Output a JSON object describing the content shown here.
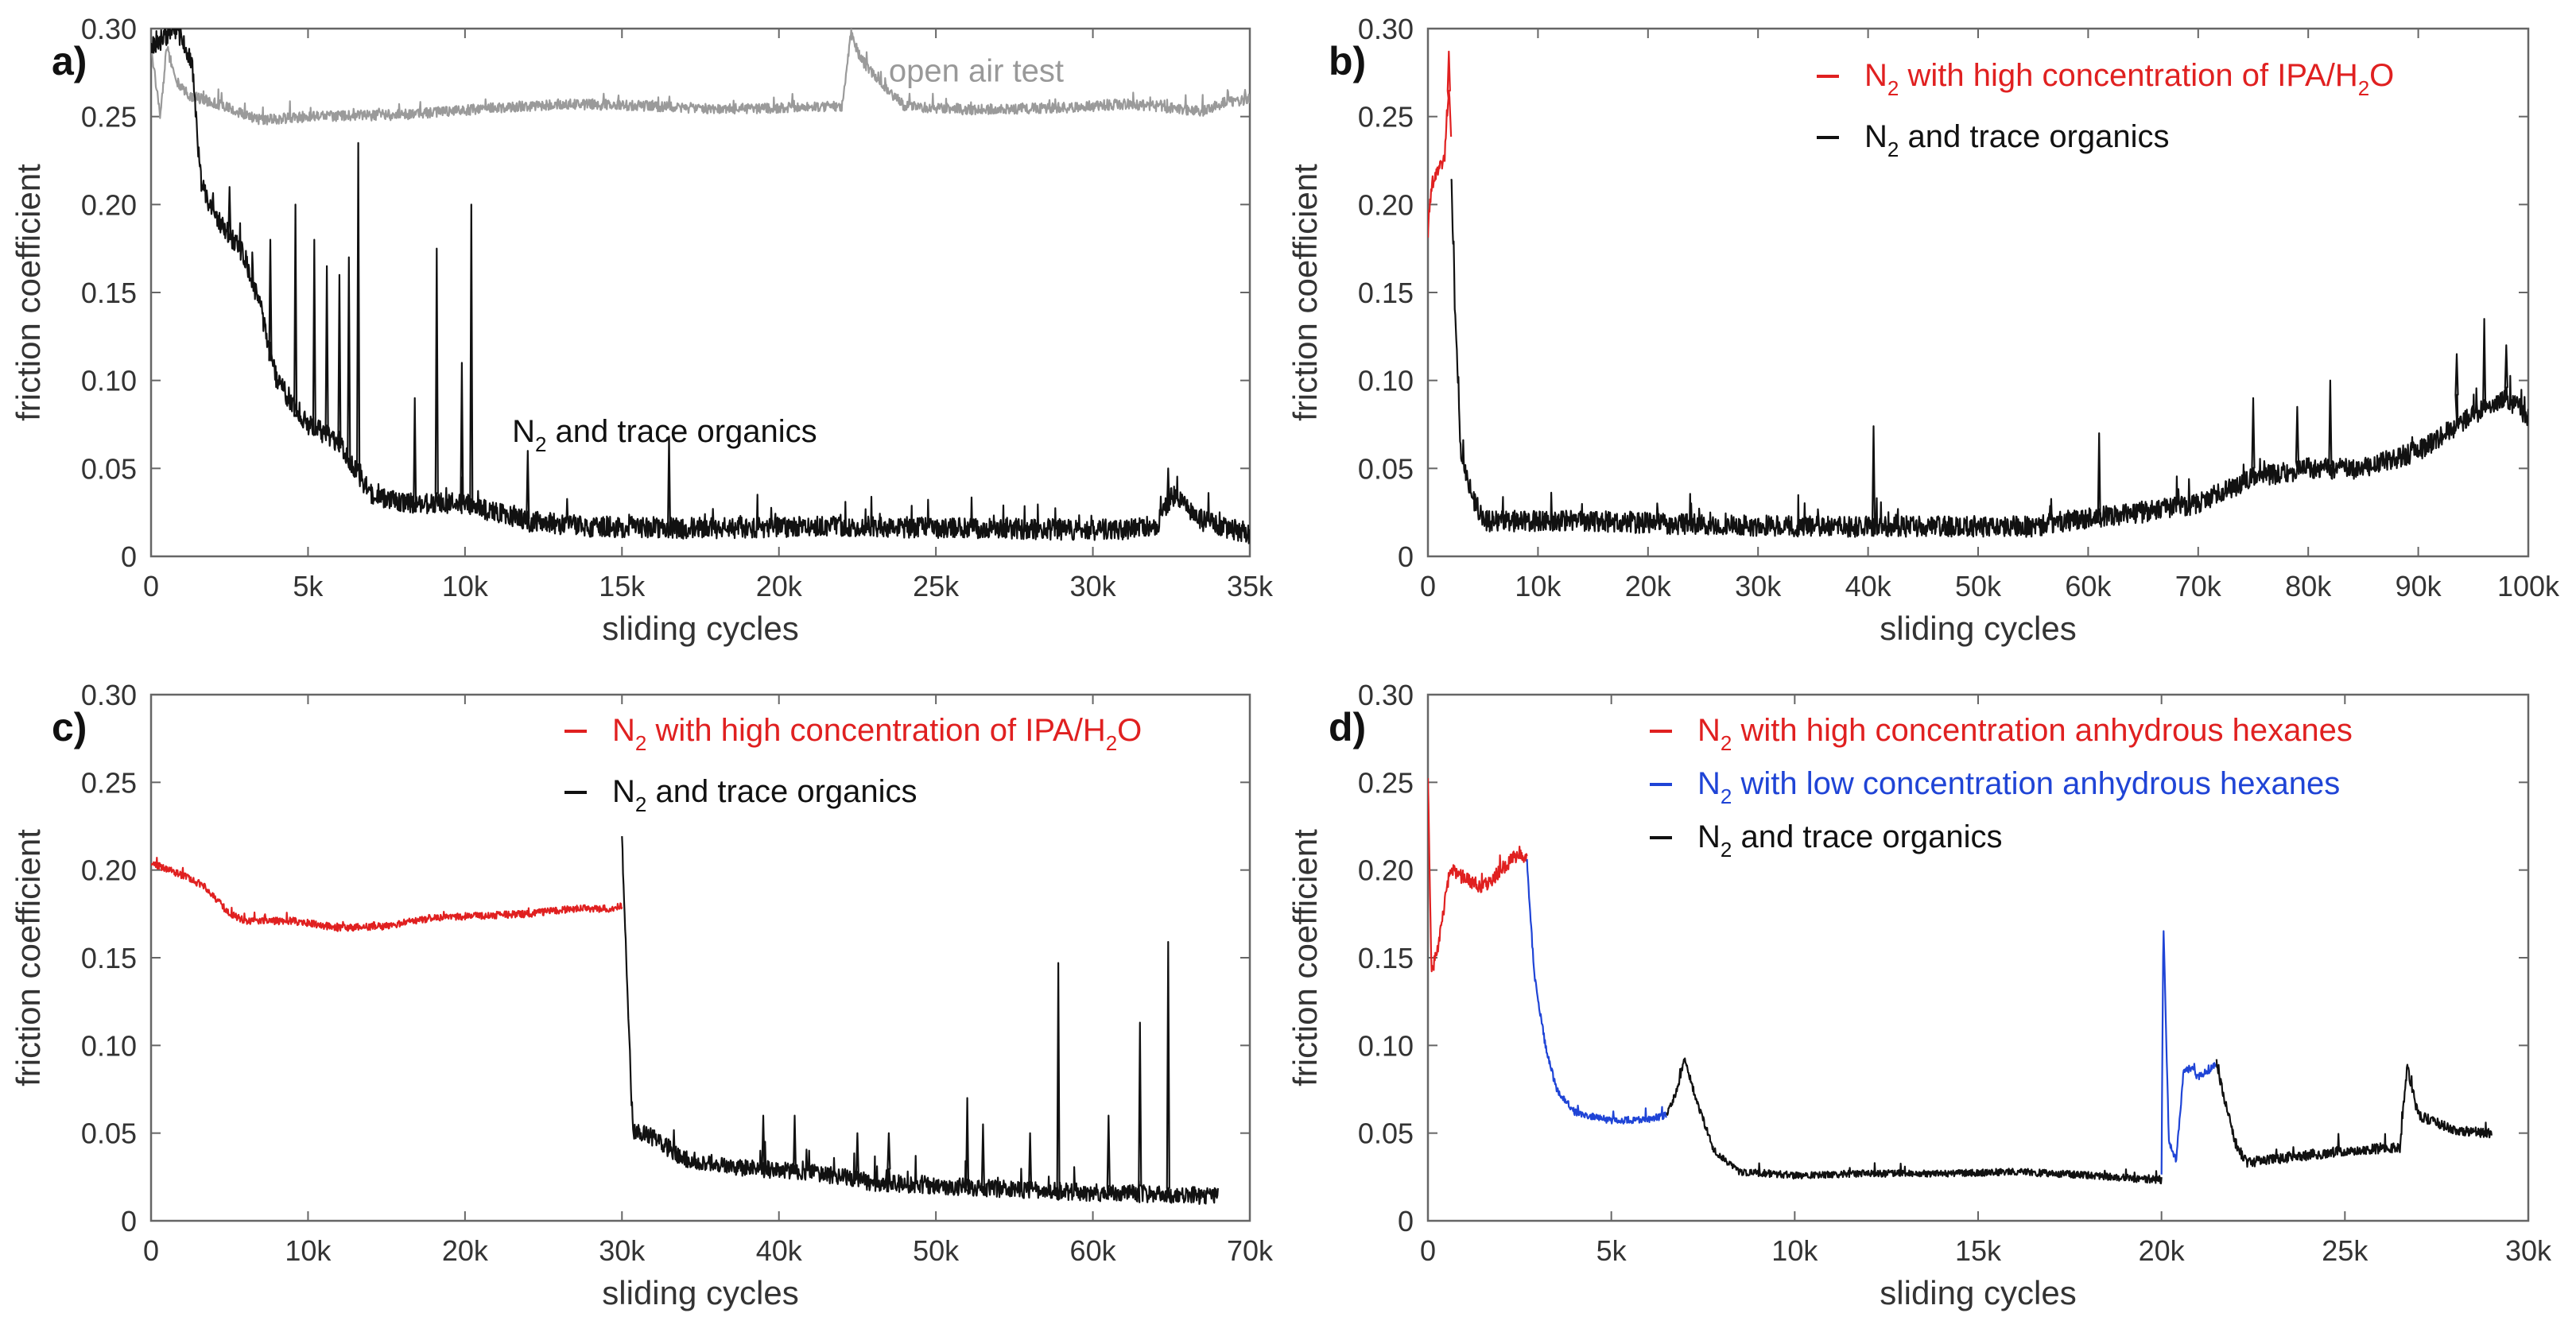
{
  "chart_data": [
    {
      "panel": "a)",
      "type": "line",
      "xlabel": "sliding cycles",
      "ylabel": "friction coefficient",
      "xlim": [
        0,
        35000
      ],
      "ylim": [
        0,
        0.3
      ],
      "xticks": [
        0,
        5000,
        10000,
        15000,
        20000,
        25000,
        30000,
        35000
      ],
      "xtick_labels": [
        "0",
        "5k",
        "10k",
        "15k",
        "20k",
        "25k",
        "30k",
        "35k"
      ],
      "yticks": [
        0,
        0.05,
        0.1,
        0.15,
        0.2,
        0.25,
        0.3
      ],
      "ytick_labels": [
        "0",
        "0.05",
        "0.10",
        "0.15",
        "0.20",
        "0.25",
        "0.30"
      ],
      "legend": [],
      "annotations": [
        {
          "text": "open air test",
          "color": "#999999",
          "x": 23500,
          "y": 0.27
        },
        {
          "n2": true,
          "text": " and trace organics",
          "color": "#111111",
          "x": 11500,
          "y": 0.065
        }
      ],
      "series": [
        {
          "name": "open air test",
          "color": "#9a9a9a",
          "x": [
            0,
            300,
            500,
            800,
            1200,
            2000,
            3000,
            3500,
            5000,
            8000,
            11000,
            13000,
            16000,
            18000,
            20000,
            22000,
            22300,
            22600,
            23300,
            24000,
            26000,
            29000,
            31000,
            32000,
            32800,
            33500,
            34200,
            35000
          ],
          "y": [
            0.29,
            0.25,
            0.29,
            0.27,
            0.262,
            0.258,
            0.251,
            0.248,
            0.25,
            0.251,
            0.255,
            0.257,
            0.256,
            0.254,
            0.255,
            0.256,
            0.297,
            0.283,
            0.268,
            0.256,
            0.254,
            0.255,
            0.257,
            0.256,
            0.254,
            0.253,
            0.258,
            0.26
          ],
          "noise": 0.003,
          "spikes": []
        },
        {
          "name": "N2 and trace organics",
          "color": "#111111",
          "x": [
            0,
            800,
            1300,
            1600,
            2200,
            3000,
            3500,
            4000,
            5000,
            6000,
            7000,
            8000,
            9000,
            10000,
            11000,
            12000,
            14000,
            17000,
            22000,
            27000,
            30000,
            32000,
            32500,
            33500,
            35000
          ],
          "y": [
            0.29,
            0.3,
            0.28,
            0.21,
            0.19,
            0.17,
            0.14,
            0.1,
            0.075,
            0.065,
            0.035,
            0.03,
            0.03,
            0.03,
            0.025,
            0.02,
            0.017,
            0.016,
            0.017,
            0.016,
            0.015,
            0.016,
            0.035,
            0.02,
            0.013
          ],
          "noise": 0.006,
          "spikes": [
            [
              2500,
              0.21
            ],
            [
              3800,
              0.18
            ],
            [
              4600,
              0.2
            ],
            [
              5200,
              0.18
            ],
            [
              5600,
              0.165
            ],
            [
              6000,
              0.16
            ],
            [
              6300,
              0.17
            ],
            [
              6600,
              0.235
            ],
            [
              8400,
              0.09
            ],
            [
              9100,
              0.175
            ],
            [
              9900,
              0.11
            ],
            [
              10200,
              0.2
            ],
            [
              12000,
              0.06
            ],
            [
              16500,
              0.068
            ],
            [
              32400,
              0.05
            ]
          ]
        }
      ]
    },
    {
      "panel": "b)",
      "type": "line",
      "xlabel": "sliding cycles",
      "ylabel": "friction coefficient",
      "xlim": [
        0,
        100000
      ],
      "ylim": [
        0,
        0.3
      ],
      "xticks": [
        0,
        10000,
        20000,
        30000,
        40000,
        50000,
        60000,
        70000,
        80000,
        90000,
        100000
      ],
      "xtick_labels": [
        "0",
        "10k",
        "20k",
        "30k",
        "40k",
        "50k",
        "60k",
        "70k",
        "80k",
        "90k",
        "100k"
      ],
      "yticks": [
        0,
        0.05,
        0.1,
        0.15,
        0.2,
        0.25,
        0.3
      ],
      "ytick_labels": [
        "0",
        "0.05",
        "0.10",
        "0.15",
        "0.20",
        "0.25",
        "0.30"
      ],
      "legend": [
        {
          "n2": true,
          "text": " with high concentration of IPA/H",
          "sub2": "2",
          "tail": "O",
          "color": "#e02020"
        },
        {
          "n2": true,
          "text": " and trace organics",
          "color": "#111111"
        }
      ],
      "annotations": [],
      "series": [
        {
          "name": "N2 with high concentration of IPA/H2O",
          "color": "#e02020",
          "x": [
            0,
            300,
            800,
            1500,
            1900,
            2100
          ],
          "y": [
            0.185,
            0.21,
            0.22,
            0.225,
            0.265,
            0.24
          ],
          "noise": 0.004,
          "spikes": [
            [
              1900,
              0.287
            ]
          ]
        },
        {
          "name": "N2 and trace organics",
          "color": "#111111",
          "x": [
            2100,
            2500,
            3000,
            4000,
            5000,
            8000,
            15000,
            25000,
            35000,
            45000,
            55000,
            60000,
            65000,
            70000,
            75000,
            80000,
            85000,
            90000,
            95000,
            98000,
            100000
          ],
          "y": [
            0.22,
            0.13,
            0.06,
            0.035,
            0.02,
            0.02,
            0.02,
            0.018,
            0.017,
            0.017,
            0.017,
            0.022,
            0.025,
            0.03,
            0.045,
            0.05,
            0.05,
            0.06,
            0.08,
            0.09,
            0.08
          ],
          "noise": 0.006,
          "spikes": [
            [
              40500,
              0.074
            ],
            [
              61000,
              0.07
            ],
            [
              75000,
              0.09
            ],
            [
              79000,
              0.085
            ],
            [
              82000,
              0.1
            ],
            [
              93500,
              0.115
            ],
            [
              96000,
              0.135
            ],
            [
              98000,
              0.12
            ]
          ]
        }
      ]
    },
    {
      "panel": "c)",
      "type": "line",
      "xlabel": "sliding cycles",
      "ylabel": "friction coefficient",
      "xlim": [
        0,
        70000
      ],
      "ylim": [
        0,
        0.3
      ],
      "xticks": [
        0,
        10000,
        20000,
        30000,
        40000,
        50000,
        60000,
        70000
      ],
      "xtick_labels": [
        "0",
        "10k",
        "20k",
        "30k",
        "40k",
        "50k",
        "60k",
        "70k"
      ],
      "yticks": [
        0,
        0.05,
        0.1,
        0.15,
        0.2,
        0.25,
        0.3
      ],
      "ytick_labels": [
        "0",
        "0.05",
        "0.10",
        "0.15",
        "0.20",
        "0.25",
        "0.30"
      ],
      "legend": [
        {
          "n2": true,
          "text": " with high concentration of IPA/H",
          "sub2": "2",
          "tail": "O",
          "color": "#e02020"
        },
        {
          "n2": true,
          "text": " and trace organics",
          "color": "#111111"
        }
      ],
      "annotations": [],
      "series": [
        {
          "name": "N2 with high concentration of IPA/H2O",
          "color": "#e02020",
          "x": [
            0,
            2000,
            3500,
            5000,
            6000,
            9000,
            12000,
            15000,
            18000,
            21000,
            24000,
            27000,
            29500,
            30000
          ],
          "y": [
            0.204,
            0.197,
            0.19,
            0.175,
            0.171,
            0.171,
            0.167,
            0.168,
            0.173,
            0.174,
            0.175,
            0.178,
            0.178,
            0.18
          ],
          "noise": 0.002,
          "spikes": []
        },
        {
          "name": "N2 and trace organics",
          "color": "#111111",
          "x": [
            30000,
            30300,
            30700,
            31500,
            34000,
            38000,
            42000,
            46000,
            50000,
            55000,
            60000,
            65000,
            68000
          ],
          "y": [
            0.22,
            0.14,
            0.05,
            0.05,
            0.035,
            0.03,
            0.028,
            0.022,
            0.02,
            0.018,
            0.016,
            0.015,
            0.014
          ],
          "noise": 0.005,
          "spikes": [
            [
              39000,
              0.06
            ],
            [
              41000,
              0.06
            ],
            [
              45000,
              0.05
            ],
            [
              47000,
              0.05
            ],
            [
              52000,
              0.07
            ],
            [
              53000,
              0.055
            ],
            [
              56000,
              0.05
            ],
            [
              57800,
              0.147
            ],
            [
              61000,
              0.06
            ],
            [
              63000,
              0.113
            ],
            [
              64800,
              0.159
            ]
          ]
        }
      ]
    },
    {
      "panel": "d)",
      "type": "line",
      "xlabel": "sliding cycles",
      "ylabel": "friction coefficient",
      "xlim": [
        0,
        30000
      ],
      "ylim": [
        0,
        0.3
      ],
      "xticks": [
        0,
        5000,
        10000,
        15000,
        20000,
        25000,
        30000
      ],
      "xtick_labels": [
        "0",
        "5k",
        "10k",
        "15k",
        "20k",
        "25k",
        "30k"
      ],
      "yticks": [
        0,
        0.05,
        0.1,
        0.15,
        0.2,
        0.25,
        0.3
      ],
      "ytick_labels": [
        "0",
        "0.05",
        "0.10",
        "0.15",
        "0.20",
        "0.25",
        "0.30"
      ],
      "legend": [
        {
          "n2": true,
          "text": " with high concentration anhydrous hexanes",
          "color": "#e02020"
        },
        {
          "n2": true,
          "text": " with low concentration anhydrous hexanes",
          "color": "#1f44d6"
        },
        {
          "n2": true,
          "text": " and trace organics",
          "color": "#111111"
        }
      ],
      "annotations": [],
      "series": [
        {
          "name": "N2 with high concentration anhydrous hexanes",
          "color": "#e02020",
          "x": [
            0,
            100,
            300,
            600,
            1000,
            1500,
            2000,
            2500,
            2700
          ],
          "y": [
            0.25,
            0.14,
            0.16,
            0.2,
            0.195,
            0.19,
            0.2,
            0.21,
            0.205
          ],
          "noise": 0.004,
          "spikes": []
        },
        {
          "name": "N2 with low concentration anhydrous hexanes (1)",
          "color": "#1f44d6",
          "x": [
            2700,
            2900,
            3200,
            3500,
            4000,
            5000,
            6000,
            6500
          ],
          "y": [
            0.205,
            0.14,
            0.1,
            0.075,
            0.062,
            0.057,
            0.058,
            0.06
          ],
          "noise": 0.002,
          "spikes": []
        },
        {
          "name": "N2 and trace organics (1)",
          "color": "#111111",
          "x": [
            6500,
            6800,
            7000,
            7300,
            7800,
            8500,
            10000,
            12000,
            14000,
            16000,
            18000,
            20000
          ],
          "y": [
            0.06,
            0.075,
            0.092,
            0.07,
            0.04,
            0.028,
            0.026,
            0.027,
            0.027,
            0.028,
            0.026,
            0.023
          ],
          "noise": 0.002,
          "spikes": []
        },
        {
          "name": "N2 with low concentration anhydrous hexanes (2)",
          "color": "#1f44d6",
          "x": [
            20000,
            20050,
            20200,
            20400,
            20600,
            20800,
            21000,
            21300,
            21500
          ],
          "y": [
            0.025,
            0.171,
            0.045,
            0.035,
            0.085,
            0.087,
            0.082,
            0.086,
            0.09
          ],
          "noise": 0.002,
          "spikes": []
        },
        {
          "name": "N2 and trace organics (2)",
          "color": "#111111",
          "x": [
            21500,
            21700,
            22000,
            22300,
            23000,
            25000,
            26500,
            26700,
            27000,
            28000,
            29000
          ],
          "y": [
            0.09,
            0.07,
            0.045,
            0.033,
            0.035,
            0.04,
            0.042,
            0.088,
            0.06,
            0.052,
            0.05
          ],
          "noise": 0.003,
          "spikes": []
        }
      ]
    }
  ]
}
